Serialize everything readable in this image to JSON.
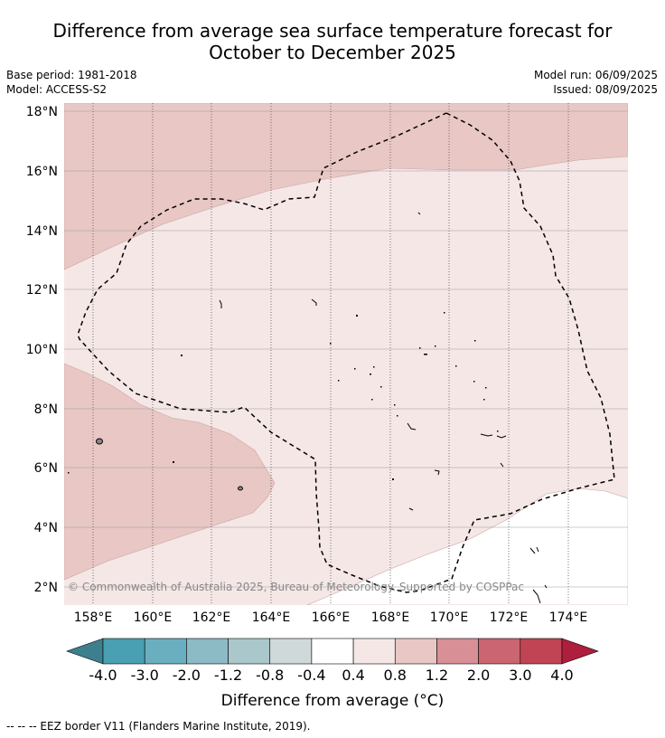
{
  "title": {
    "line1": "Difference from average sea surface temperature forecast for",
    "line2": "October to December 2025"
  },
  "meta": {
    "base_period": "Base period: 1981-2018",
    "model": "Model: ACCESS-S2",
    "model_run": "Model run: 06/09/2025",
    "issued": "Issued: 08/09/2025"
  },
  "map": {
    "lat_labels": [
      "18°N",
      "16°N",
      "14°N",
      "12°N",
      "10°N",
      "8°N",
      "6°N",
      "4°N",
      "2°N"
    ],
    "lon_labels": [
      "158°E",
      "160°E",
      "162°E",
      "164°E",
      "166°E",
      "168°E",
      "170°E",
      "172°E",
      "174°E"
    ],
    "copyright": "© Commonwealth of Australia 2025, Bureau of Meteorology. Supported by COSPPac",
    "colors": {
      "band_0_8_to_1_2": "#e8c7c4",
      "band_0_4_to_0_8": "#f4e7e6",
      "band_neg0_4_to_0_4": "#ffffff"
    }
  },
  "colorbar": {
    "bins": [
      {
        "from": "-inf",
        "to": -4.0,
        "color": "#3d7f8c"
      },
      {
        "from": -4.0,
        "to": -3.0,
        "color": "#48a0b2"
      },
      {
        "from": -3.0,
        "to": -2.0,
        "color": "#6aafbf"
      },
      {
        "from": -2.0,
        "to": -1.2,
        "color": "#8cbac5"
      },
      {
        "from": -1.2,
        "to": -0.8,
        "color": "#aac8cc"
      },
      {
        "from": -0.8,
        "to": -0.4,
        "color": "#d0d9da"
      },
      {
        "from": -0.4,
        "to": 0.4,
        "color": "#ffffff"
      },
      {
        "from": 0.4,
        "to": 0.8,
        "color": "#f4e7e6"
      },
      {
        "from": 0.8,
        "to": 1.2,
        "color": "#e8c7c4"
      },
      {
        "from": 1.2,
        "to": 2.0,
        "color": "#d98f96"
      },
      {
        "from": 2.0,
        "to": 3.0,
        "color": "#cb6571"
      },
      {
        "from": 3.0,
        "to": 4.0,
        "color": "#c04454"
      },
      {
        "from": 4.0,
        "to": "inf",
        "color": "#b01e3e"
      }
    ],
    "tick_labels": [
      "-4.0",
      "-3.0",
      "-2.0",
      "-1.2",
      "-0.8",
      "-0.4",
      "0.4",
      "0.8",
      "1.2",
      "2.0",
      "3.0",
      "4.0"
    ],
    "label": "Difference from average (°C)"
  },
  "footnote": "--  --  -- EEZ border V11 (Flanders Marine Institute, 2019)."
}
